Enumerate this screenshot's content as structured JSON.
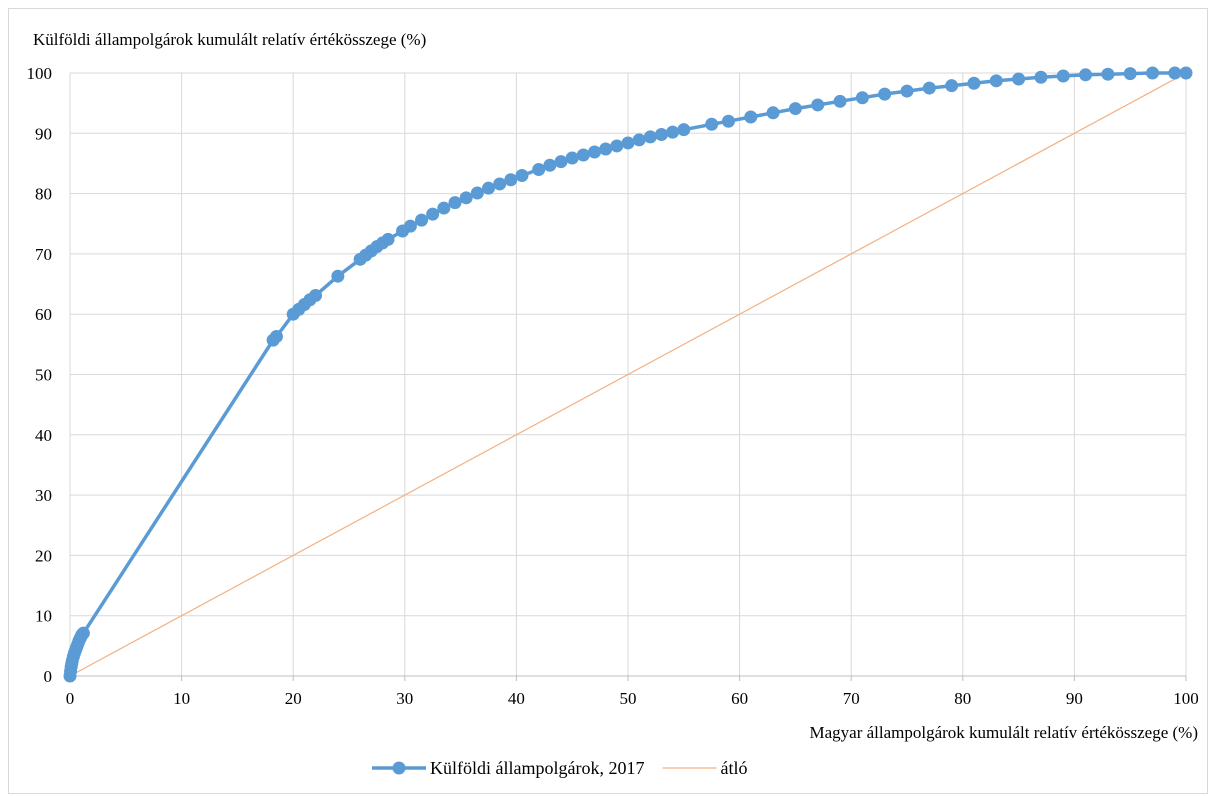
{
  "chart_data": {
    "type": "line",
    "title": "",
    "ylabel": "Külföldi állampolgárok kumulált relatív értékösszege (%)",
    "xlabel": "Magyar állampolgárok kumulált relatív értékösszege (%)",
    "xlim": [
      0,
      100
    ],
    "ylim": [
      0,
      100
    ],
    "x_ticks": [
      "0",
      "10",
      "20",
      "30",
      "40",
      "50",
      "60",
      "70",
      "80",
      "90",
      "100"
    ],
    "y_ticks": [
      "0",
      "10",
      "20",
      "30",
      "40",
      "50",
      "60",
      "70",
      "80",
      "90",
      "100"
    ],
    "grid": true,
    "legend_position": "bottom",
    "series": [
      {
        "name": "Külföldi állampolgárok, 2017",
        "color": "#5b9bd5",
        "marker": "circle",
        "x": [
          0,
          0.05,
          0.1,
          0.15,
          0.2,
          0.3,
          0.4,
          0.5,
          0.6,
          0.7,
          0.8,
          0.9,
          1.0,
          1.1,
          1.2,
          18.2,
          18.5,
          20.0,
          20.5,
          21.0,
          21.5,
          22.0,
          24.0,
          26.0,
          26.5,
          27.0,
          27.5,
          28.0,
          28.5,
          29.8,
          30.5,
          31.5,
          32.5,
          33.5,
          34.5,
          35.5,
          36.5,
          37.5,
          38.5,
          39.5,
          40.5,
          42.0,
          43.0,
          44.0,
          45.0,
          46.0,
          47.0,
          48.0,
          49.0,
          50.0,
          51.0,
          52.0,
          53.0,
          54.0,
          55.0,
          57.5,
          59.0,
          61.0,
          63.0,
          65.0,
          67.0,
          69.0,
          71.0,
          73.0,
          75.0,
          77.0,
          79.0,
          81.0,
          83.0,
          85.0,
          87.0,
          89.0,
          91.0,
          93.0,
          95.0,
          97.0,
          99.0,
          100
        ],
        "y": [
          0,
          0.8,
          1.5,
          2.0,
          2.5,
          3.2,
          3.8,
          4.3,
          4.8,
          5.3,
          5.8,
          6.2,
          6.6,
          6.9,
          7.1,
          55.7,
          56.3,
          60.0,
          60.8,
          61.6,
          62.4,
          63.1,
          66.3,
          69.1,
          69.8,
          70.5,
          71.2,
          71.8,
          72.4,
          73.8,
          74.6,
          75.6,
          76.6,
          77.6,
          78.5,
          79.3,
          80.1,
          80.9,
          81.6,
          82.3,
          83.0,
          84.0,
          84.7,
          85.3,
          85.9,
          86.4,
          86.9,
          87.4,
          87.9,
          88.4,
          88.9,
          89.4,
          89.8,
          90.2,
          90.6,
          91.5,
          92.0,
          92.7,
          93.4,
          94.1,
          94.7,
          95.3,
          95.9,
          96.5,
          97.0,
          97.5,
          97.9,
          98.3,
          98.7,
          99.0,
          99.3,
          99.5,
          99.7,
          99.8,
          99.9,
          100.0,
          100.0,
          100.0
        ]
      },
      {
        "name": "átló",
        "color": "#f4b183",
        "marker": "none",
        "x": [
          0,
          100
        ],
        "y": [
          0,
          100
        ]
      }
    ]
  }
}
